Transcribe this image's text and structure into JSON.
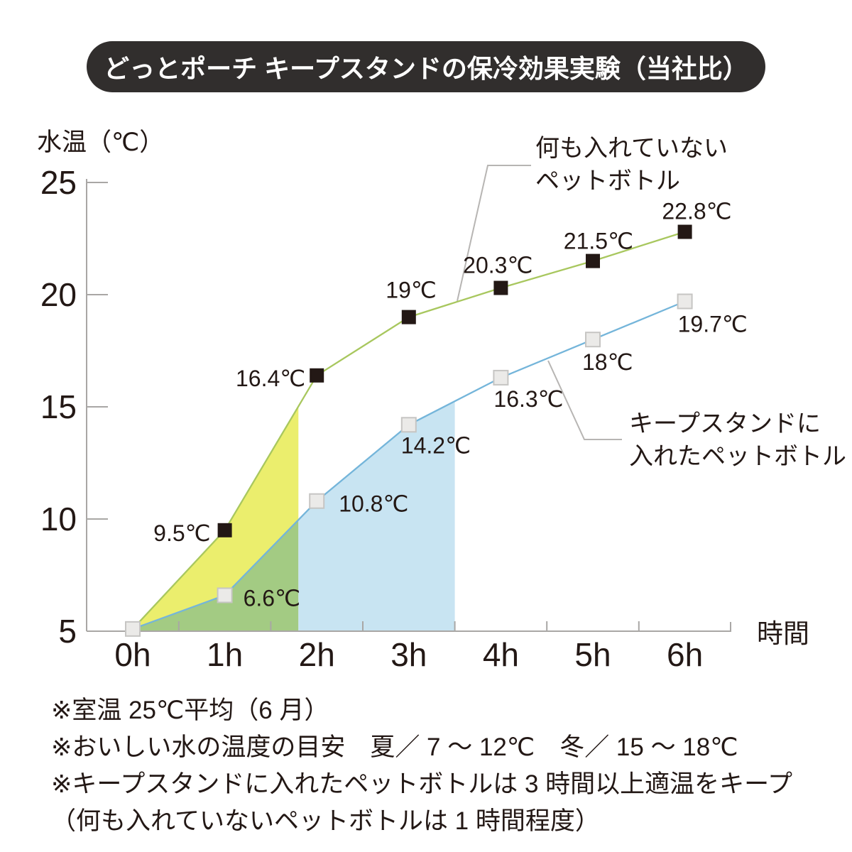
{
  "title": "どっとポーチ キープスタンドの保冷効果実験（当社比）",
  "chart_data": {
    "type": "line",
    "title": "どっとポーチ キープスタンドの保冷効果実験（当社比）",
    "ylabel": "水温（℃）",
    "xlabel": "時間",
    "categories": [
      "0h",
      "1h",
      "2h",
      "3h",
      "4h",
      "5h",
      "6h"
    ],
    "hours": [
      0,
      1,
      2,
      3,
      4,
      5,
      6
    ],
    "ylim": [
      5,
      25
    ],
    "yticks": [
      5,
      10,
      15,
      20,
      25
    ],
    "half_hour_ticks": [
      0.5,
      1.5,
      2.5,
      3.5,
      4.5,
      5.5
    ],
    "grid": false,
    "legend": "annotated-with-leader-lines",
    "series": [
      {
        "name": "何も入れていないペットボトル",
        "values": [
          5.1,
          9.5,
          16.4,
          19,
          20.3,
          21.5,
          22.8
        ],
        "point_labels": [
          "",
          "9.5℃",
          "16.4℃",
          "19℃",
          "20.3℃",
          "21.5℃",
          "22.8℃"
        ],
        "line_color": "#a8c75e",
        "marker": "black-square",
        "marker_fill": "#231815",
        "marker_stroke": "#231815"
      },
      {
        "name": "キープスタンドに入れたペットボトル",
        "values": [
          5.1,
          6.6,
          10.8,
          14.2,
          16.3,
          18,
          19.7
        ],
        "point_labels": [
          "",
          "6.6℃",
          "10.8℃",
          "14.2℃",
          "16.3℃",
          "18℃",
          "19.7℃"
        ],
        "line_color": "#74b5da",
        "marker": "gray-square",
        "marker_fill": "#ebeae8",
        "marker_stroke": "#c6c5c3"
      }
    ],
    "shaded_regions": [
      {
        "name": "gap-between-lines",
        "color": "#ebee6d",
        "from_h": 0,
        "to_h": 1.8
      },
      {
        "name": "under-keepstand-line-early",
        "color": "#a3cb83",
        "from_h": 0,
        "to_h": 1.8
      },
      {
        "name": "under-keepstand-line-late",
        "color": "#c8e4f2",
        "from_h": 1.8,
        "to_h": 3.5
      }
    ],
    "annotations": [
      {
        "target_series": "何も入れていないペットボトル",
        "text_lines": [
          "何も入れていない",
          "ペットボトル"
        ]
      },
      {
        "target_series": "キープスタンドに入れたペットボトル",
        "text_lines": [
          "キープスタンドに",
          "入れたペットボトル"
        ]
      }
    ]
  },
  "notes": [
    "※室温 25℃平均（6 月）",
    "※おいしい水の温度の目安　夏／ 7 ～ 12℃　冬／ 15 ～ 18℃",
    "※キープスタンドに入れたペットボトルは 3 時間以上適温をキープ",
    "（何も入れていないペットボトルは 1 時間程度）"
  ],
  "colors": {
    "title_bg": "#312e2d",
    "title_text": "#ffffff",
    "text": "#231815",
    "axis": "#a9a7a5",
    "leader": "#b7b5b3"
  }
}
